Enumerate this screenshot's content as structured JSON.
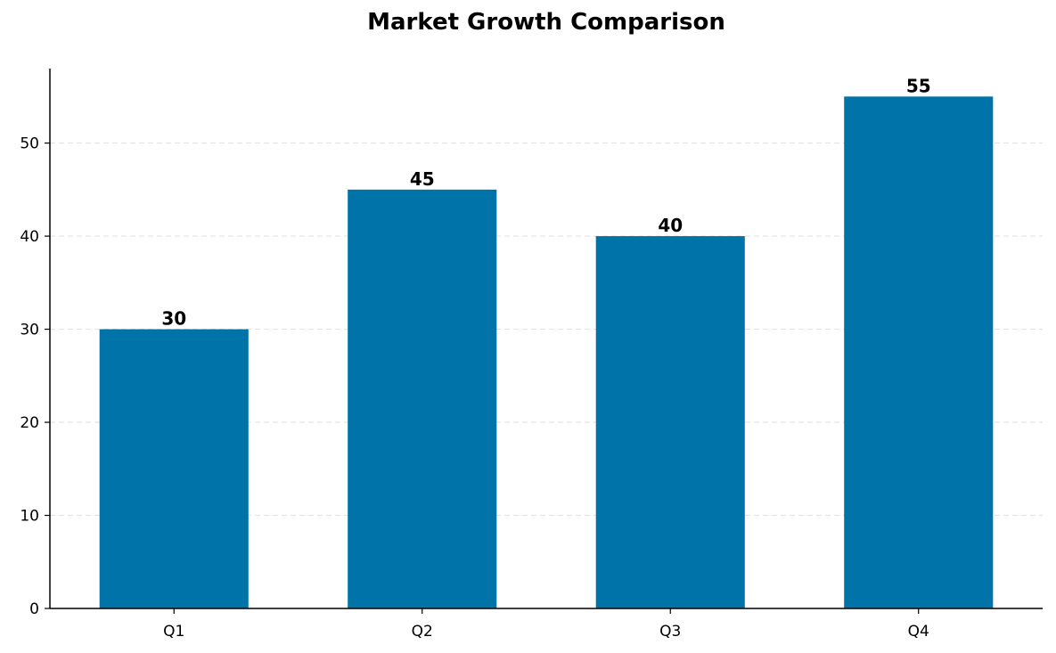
{
  "chart_data": {
    "type": "bar",
    "title": "Market Growth Comparison",
    "xlabel": "",
    "ylabel": "",
    "categories": [
      "Q1",
      "Q2",
      "Q3",
      "Q4"
    ],
    "values": [
      30,
      45,
      40,
      55
    ],
    "value_labels": [
      "30",
      "45",
      "40",
      "55"
    ],
    "ylim": [
      0,
      58
    ],
    "yticks": [
      0,
      10,
      20,
      30,
      40,
      50
    ],
    "ytick_labels": [
      "0",
      "10",
      "20",
      "30",
      "40",
      "50"
    ],
    "grid": "y-dashed",
    "legend": "none",
    "bar_color": "#0074A8",
    "grid_color": "#E3E3E3",
    "axis_color": "#000000"
  }
}
